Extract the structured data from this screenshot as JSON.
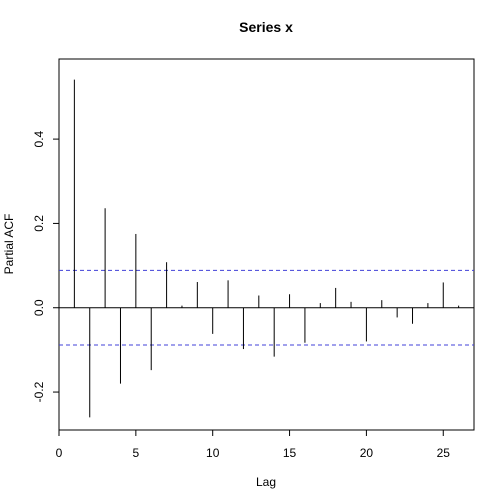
{
  "chart_data": {
    "type": "bar",
    "title": "Series  x",
    "xlabel": "Lag",
    "ylabel": "Partial ACF",
    "xlim": [
      0,
      27
    ],
    "ylim": [
      -0.29,
      0.59
    ],
    "x_ticks": [
      {
        "value": 0,
        "label": "0"
      },
      {
        "value": 5,
        "label": "5"
      },
      {
        "value": 10,
        "label": "10"
      },
      {
        "value": 15,
        "label": "15"
      },
      {
        "value": 20,
        "label": "20"
      },
      {
        "value": 25,
        "label": "25"
      }
    ],
    "y_ticks": [
      {
        "value": -0.2,
        "label": "-0.2"
      },
      {
        "value": 0.0,
        "label": "0.0"
      },
      {
        "value": 0.2,
        "label": "0.2"
      },
      {
        "value": 0.4,
        "label": "0.4"
      }
    ],
    "series": [
      {
        "x": [
          1,
          2,
          3,
          4,
          5,
          6,
          7,
          8,
          9,
          10,
          11,
          12,
          13,
          14,
          15,
          16,
          17,
          18,
          19,
          20,
          21,
          22,
          23,
          24,
          25,
          26
        ],
        "values": [
          0.541,
          -0.26,
          0.236,
          -0.18,
          0.175,
          -0.148,
          0.108,
          0.005,
          0.061,
          -0.062,
          0.065,
          -0.098,
          0.029,
          -0.116,
          0.032,
          -0.083,
          0.011,
          0.047,
          0.014,
          -0.08,
          0.018,
          -0.023,
          -0.038,
          0.011,
          0.06,
          0.005
        ]
      }
    ],
    "confidence_band": {
      "upper": 0.0885,
      "lower": -0.0885,
      "color": "#4040d8",
      "style": "dashed"
    },
    "zero_line": true,
    "grid": false,
    "colors": {
      "bars": "#000000",
      "axes": "#000000"
    }
  }
}
